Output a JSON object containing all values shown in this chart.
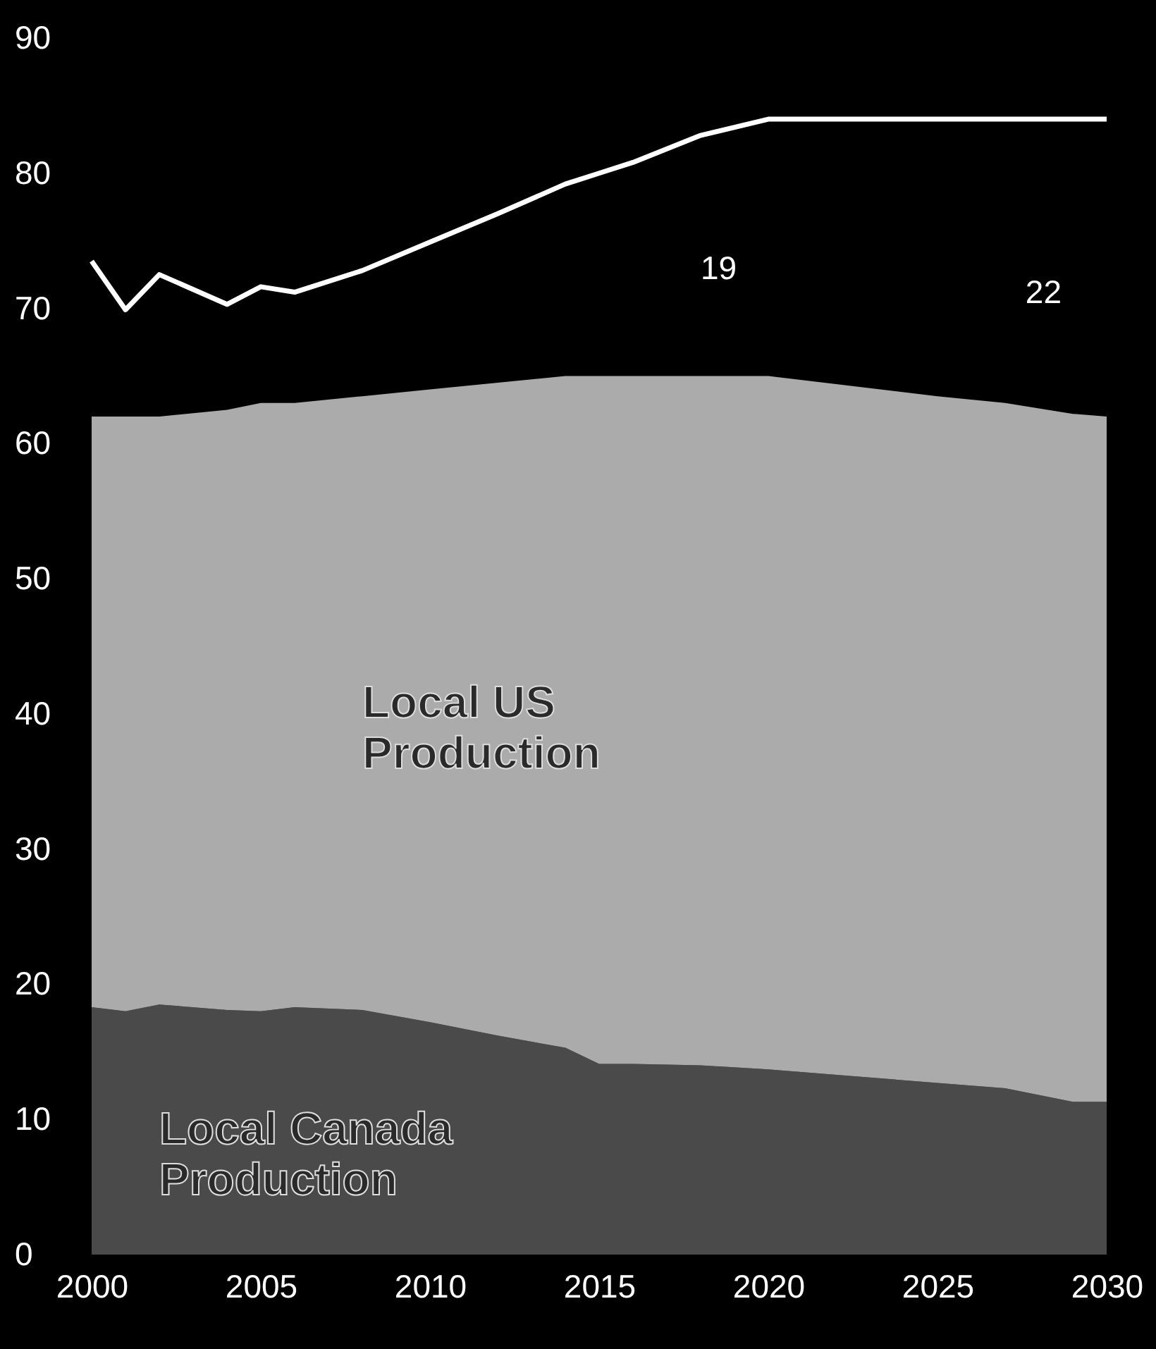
{
  "chart_data": {
    "type": "area",
    "stacked": true,
    "x": [
      2000,
      2001,
      2002,
      2004,
      2005,
      2006,
      2008,
      2010,
      2012,
      2014,
      2015,
      2016,
      2018,
      2020,
      2025,
      2027,
      2029,
      2030
    ],
    "series": [
      {
        "name": "Local Canada Production",
        "color": "#4a4a4a",
        "values": [
          18.3,
          18.0,
          18.5,
          18.1,
          18.0,
          18.3,
          18.1,
          17.2,
          16.2,
          15.3,
          14.1,
          14.1,
          14.0,
          13.7,
          12.7,
          12.3,
          11.3,
          11.3
        ]
      },
      {
        "name": "Local US Production",
        "color": "#ababab",
        "values": [
          43.7,
          44.0,
          43.5,
          44.4,
          45.0,
          44.7,
          45.4,
          46.8,
          48.3,
          49.7,
          50.9,
          50.9,
          51.0,
          51.3,
          50.8,
          50.7,
          50.9,
          50.7
        ]
      },
      {
        "type": "line",
        "color": "#ffffff",
        "values": [
          73.5,
          69.9,
          72.5,
          70.3,
          71.6,
          71.2,
          72.8,
          74.9,
          77.0,
          79.2,
          80.0,
          80.8,
          82.8,
          84.0,
          84.0,
          84.0,
          84.0,
          84.0
        ]
      }
    ],
    "annotations": [
      "19",
      "22"
    ],
    "xlim": [
      2000,
      2030
    ],
    "xticks": [
      2000,
      2005,
      2010,
      2015,
      2020,
      2025,
      2030
    ],
    "ylim": [
      0,
      90
    ],
    "yticks": [
      0,
      10,
      20,
      30,
      40,
      50,
      60,
      70,
      80,
      90
    ]
  }
}
